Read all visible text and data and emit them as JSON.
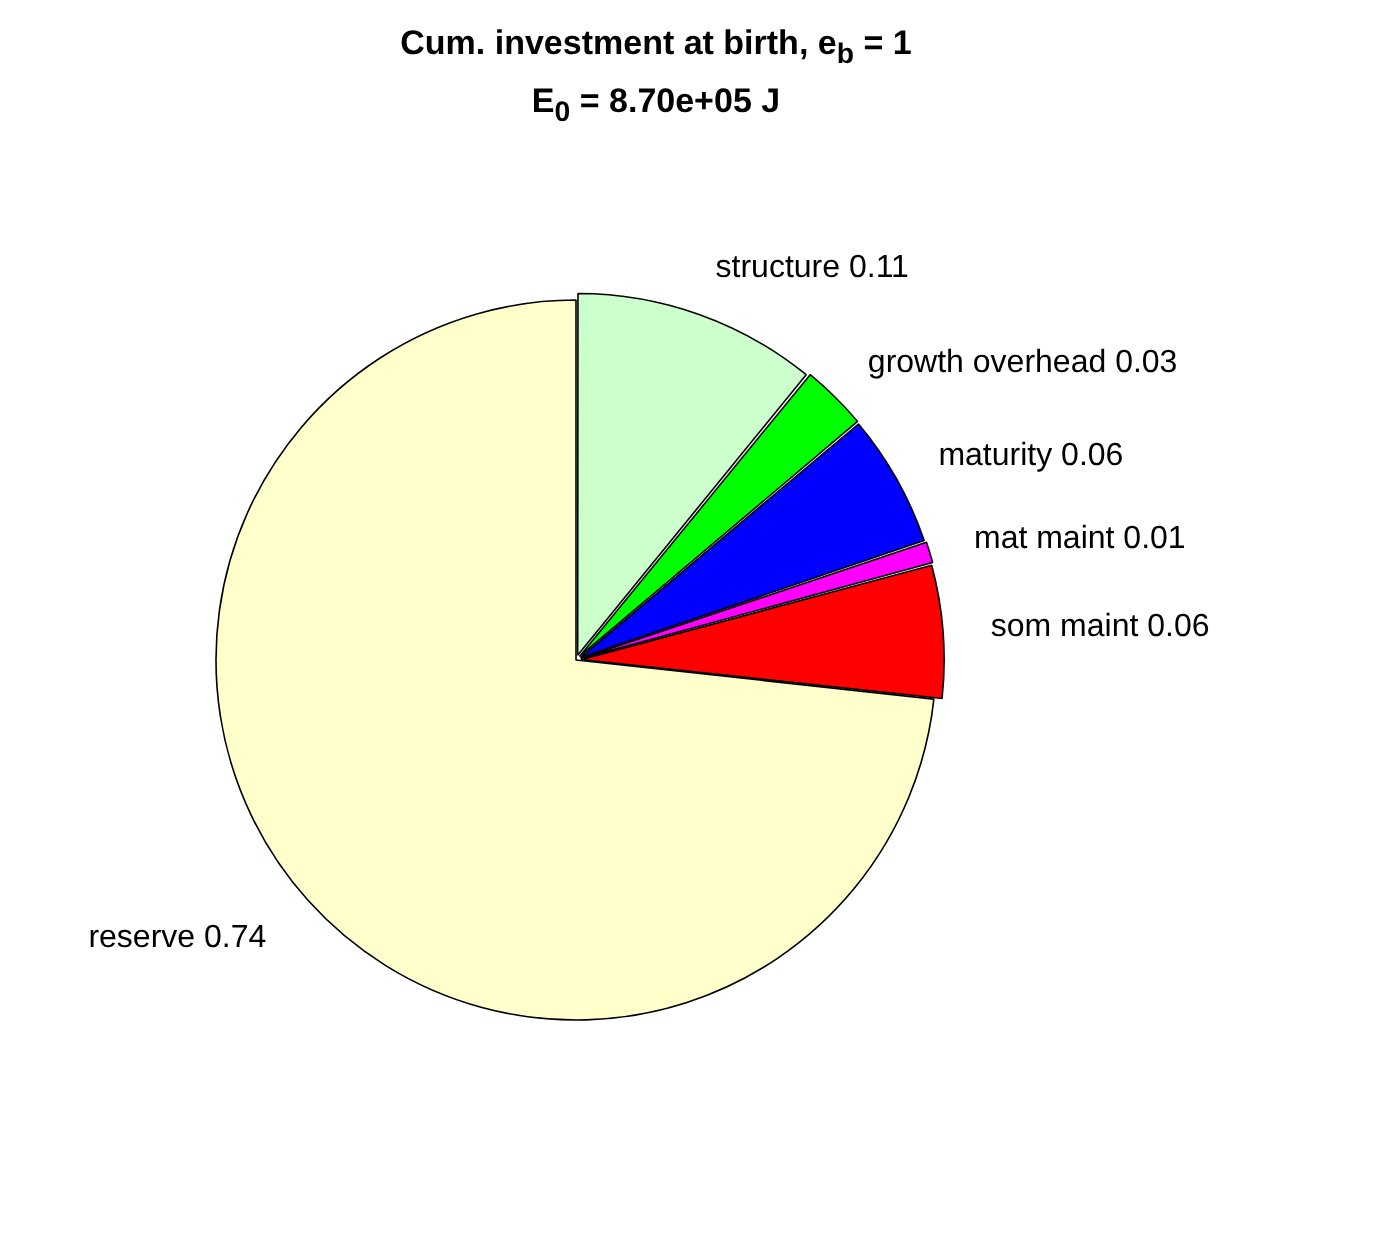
{
  "chart_data": {
    "type": "pie",
    "title": "Cum. investment at birth, e$_{b}$ = 1",
    "subtitle": "E$_{0}$ = 8.70e+05 J",
    "categories": [
      "structure",
      "growth overhead",
      "maturity",
      "mat maint",
      "som maint",
      "reserve"
    ],
    "values": [
      0.11,
      0.03,
      0.06,
      0.01,
      0.06,
      0.74
    ],
    "colors": [
      "#ccffcc",
      "#00ff00",
      "#0000ff",
      "#ff00ff",
      "#ff0000",
      "#ffffcc"
    ],
    "data_labels": true,
    "legend": false
  }
}
